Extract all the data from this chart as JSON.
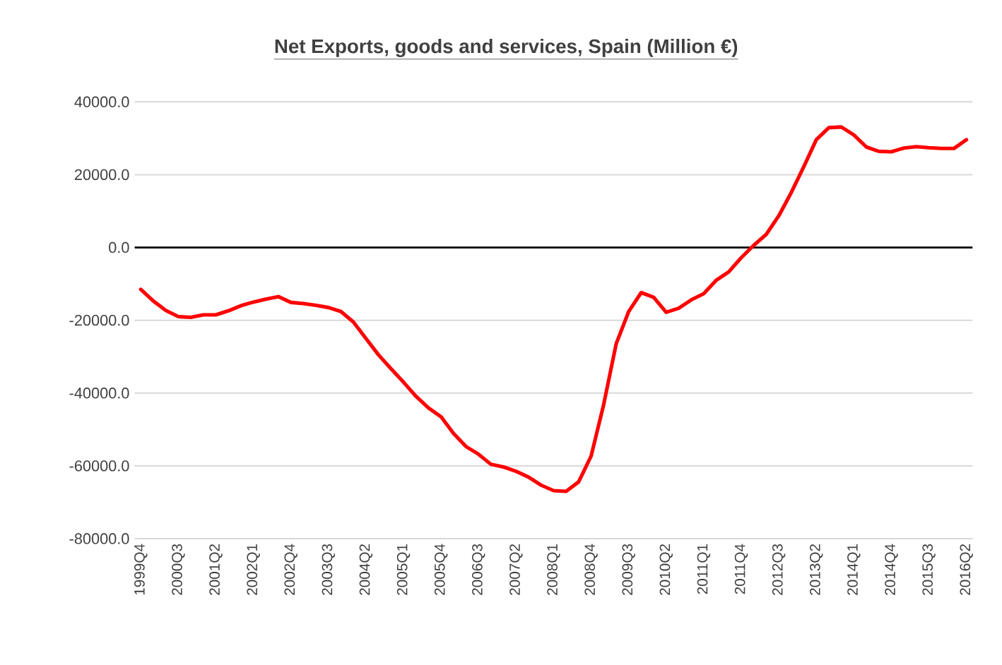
{
  "chart_data": {
    "type": "line",
    "title": "Net Exports, goods and services, Spain (Million €)",
    "categories": [
      "1999Q4",
      null,
      null,
      "2000Q3",
      null,
      null,
      "2001Q2",
      null,
      null,
      "2002Q1",
      null,
      null,
      "2002Q4",
      null,
      null,
      "2003Q3",
      null,
      null,
      "2004Q2",
      null,
      null,
      "2005Q1",
      null,
      null,
      "2005Q4",
      null,
      null,
      "2006Q3",
      null,
      null,
      "2007Q2",
      null,
      null,
      "2008Q1",
      null,
      null,
      "2008Q4",
      null,
      null,
      "2009Q3",
      null,
      null,
      "2010Q2",
      null,
      null,
      "2011Q1",
      null,
      null,
      "2011Q4",
      null,
      null,
      "2012Q3",
      null,
      null,
      "2013Q2",
      null,
      null,
      "2014Q1",
      null,
      null,
      "2014Q4",
      null,
      null,
      "2015Q3",
      null,
      null,
      "2016Q2"
    ],
    "series": [
      {
        "color": "#ff0000",
        "values": [
          -11500,
          -14700,
          -17300,
          -19000,
          -19200,
          -18500,
          -18500,
          -17400,
          -16000,
          -15000,
          -14200,
          -13500,
          -15100,
          -15400,
          -15900,
          -16500,
          -17600,
          -20500,
          -25000,
          -29500,
          -33300,
          -37000,
          -40900,
          -44100,
          -46500,
          -51100,
          -54700,
          -56800,
          -59600,
          -60300,
          -61500,
          -63100,
          -65300,
          -66800,
          -67000,
          -64400,
          -57300,
          -43200,
          -26500,
          -17600,
          -12400,
          -13700,
          -17800,
          -16700,
          -14400,
          -12700,
          -9000,
          -6700,
          -2800,
          600,
          3600,
          8700,
          15100,
          22200,
          29600,
          32900,
          33100,
          30900,
          27600,
          26400,
          26300,
          27300,
          27700,
          27400,
          27200,
          27200,
          29600
        ]
      }
    ],
    "ylim": [
      -80000,
      40000
    ],
    "yticks": [
      {
        "value": -80000,
        "label": "-80000.0"
      },
      {
        "value": -60000,
        "label": "-60000.0"
      },
      {
        "value": -40000,
        "label": "-40000.0"
      },
      {
        "value": -20000,
        "label": "-20000.0"
      },
      {
        "value": 0,
        "label": "0.0"
      },
      {
        "value": 20000,
        "label": "20000.0"
      },
      {
        "value": 40000,
        "label": "40000.0"
      }
    ],
    "grid": "y",
    "marker": "none",
    "line_style": "solid",
    "ref_lines": [
      {
        "axis": "y",
        "value": 0,
        "color": "#000000"
      }
    ]
  }
}
